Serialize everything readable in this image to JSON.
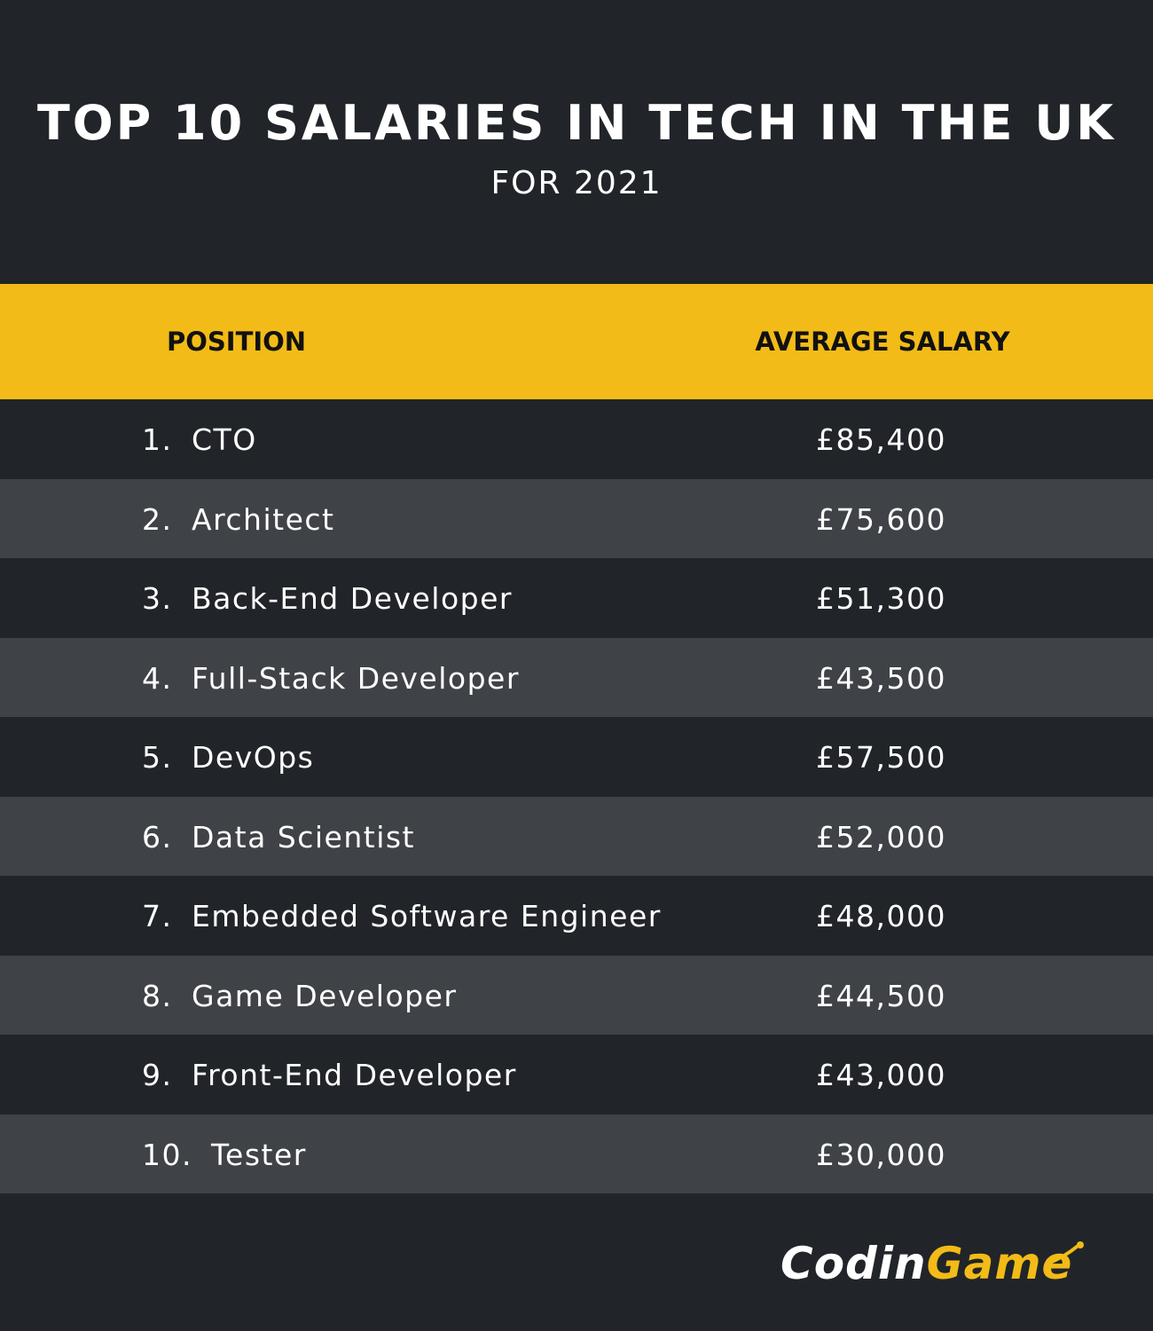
{
  "title": "TOP 10 SALARIES IN TECH IN THE UK",
  "subtitle": "FOR 2021",
  "colors": {
    "background": "#212529",
    "row_alt": "#3f4246",
    "header": "#f2bb17",
    "text": "#ffffff"
  },
  "chart_data": {
    "type": "table",
    "title": "TOP 10 SALARIES IN TECH IN THE UK",
    "subtitle": "FOR 2021",
    "columns": [
      "POSITION",
      "AVERAGE SALARY"
    ],
    "rows": [
      {
        "rank": "1.",
        "position": "CTO",
        "salary": "£85,400"
      },
      {
        "rank": "2.",
        "position": "Architect",
        "salary": "£75,600"
      },
      {
        "rank": "3.",
        "position": "Back-End Developer",
        "salary": "£51,300"
      },
      {
        "rank": "4.",
        "position": "Full-Stack Developer",
        "salary": "£43,500"
      },
      {
        "rank": "5.",
        "position": "DevOps",
        "salary": "£57,500"
      },
      {
        "rank": "6.",
        "position": "Data Scientist",
        "salary": "£52,000"
      },
      {
        "rank": "7.",
        "position": "Embedded Software Engineer",
        "salary": "£48,000"
      },
      {
        "rank": "8.",
        "position": "Game Developer",
        "salary": "£44,500"
      },
      {
        "rank": "9.",
        "position": "Front-End Developer",
        "salary": "£43,000"
      },
      {
        "rank": "10.",
        "position": "Tester",
        "salary": "£30,000"
      }
    ]
  },
  "logo": {
    "part1": "Codin",
    "part2": "Game",
    "icon": "codingame-logo-icon"
  }
}
